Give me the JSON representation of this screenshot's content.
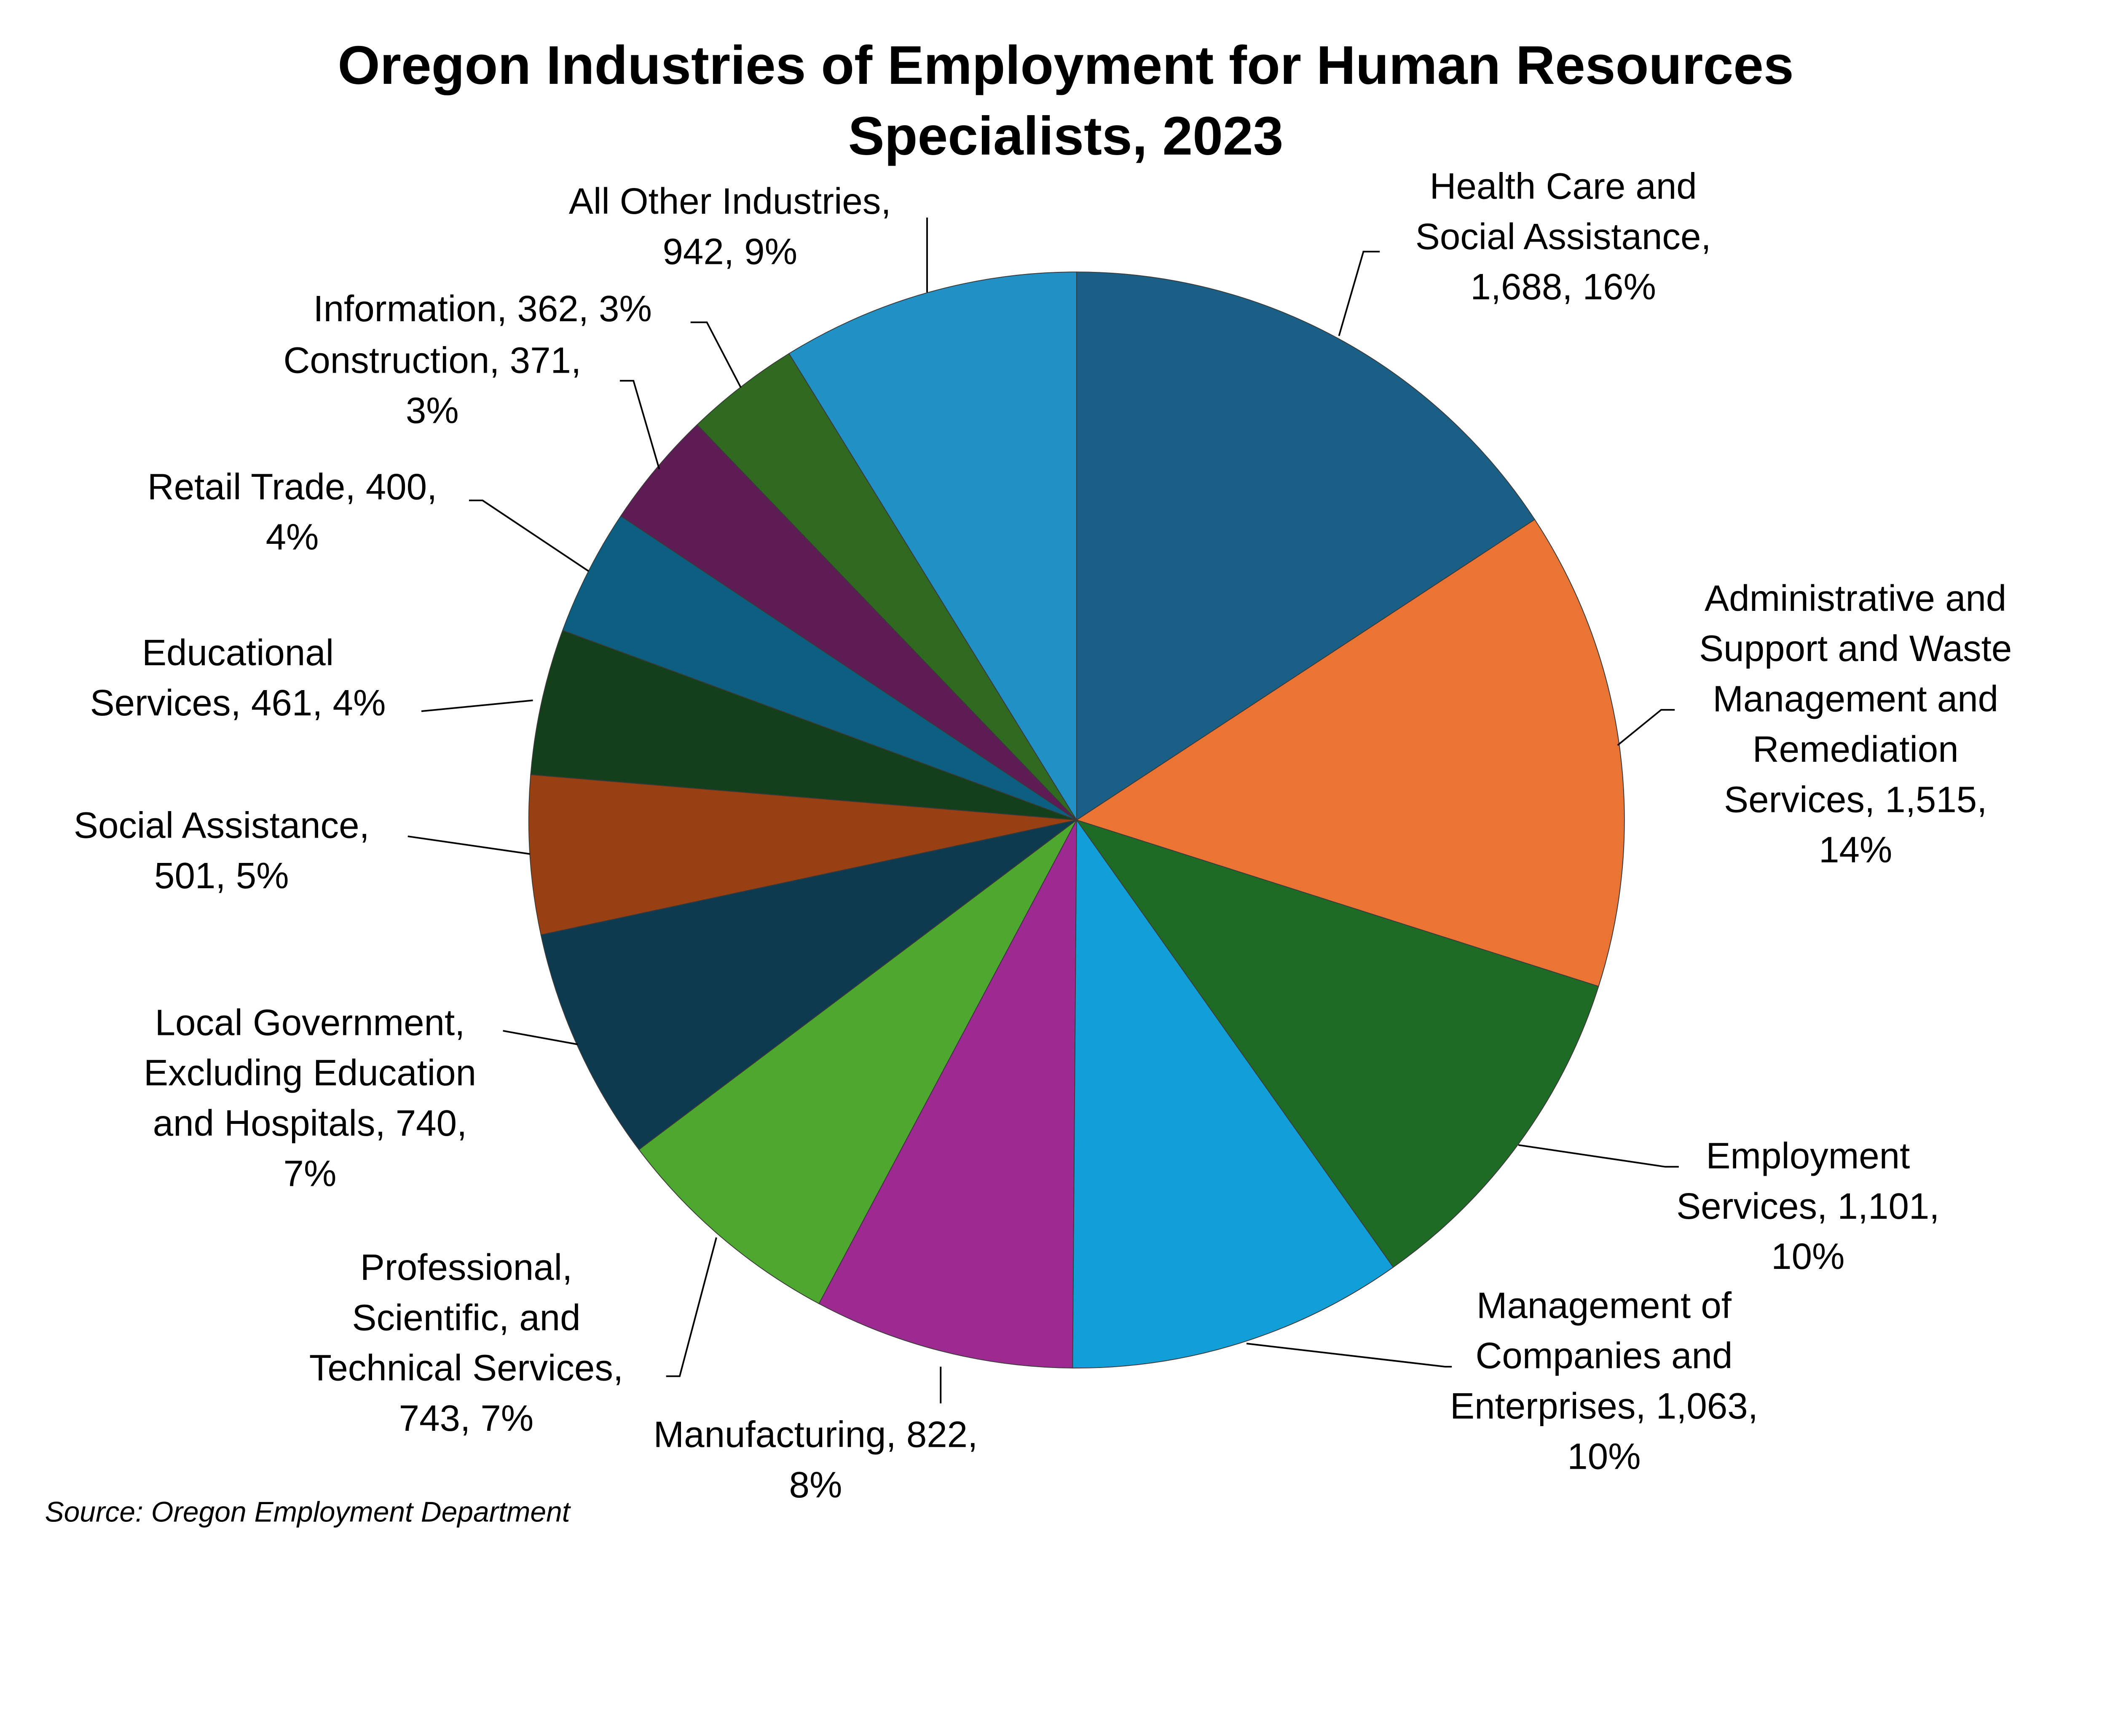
{
  "chart_data": {
    "type": "pie",
    "title": "Oregon Industries of Employment for Human Resources Specialists, 2023",
    "title_lines": [
      "Oregon Industries of Employment for Human Resources",
      "Specialists, 2023"
    ],
    "source": "Source: Oregon Employment Department",
    "start_angle": "12 o'clock",
    "direction": "clockwise",
    "slices": [
      {
        "name": "Health Care and Social Assistance",
        "value": 1688,
        "percent": 16,
        "color": "#1a5f85",
        "label_lines": [
          "Health Care and",
          "Social Assistance,",
          "1,688, 16%"
        ]
      },
      {
        "name": "Administrative and Support and Waste Management and Remediation Services",
        "value": 1515,
        "percent": 14,
        "color": "#e97434",
        "label_lines": [
          "Administrative and",
          "Support and Waste",
          "Management and",
          "Remediation",
          "Services, 1,515,",
          "14%"
        ]
      },
      {
        "name": "Employment Services",
        "value": 1101,
        "percent": 10,
        "color": "#1d6b24",
        "label_lines": [
          "Employment",
          "Services, 1,101,",
          "10%"
        ]
      },
      {
        "name": "Management of Companies and Enterprises",
        "value": 1063,
        "percent": 10,
        "color": "#129fd8",
        "label_lines": [
          "Management of",
          "Companies and",
          "Enterprises, 1,063,",
          "10%"
        ]
      },
      {
        "name": "Manufacturing",
        "value": 822,
        "percent": 8,
        "color": "#9c2a91",
        "label_lines": [
          "Manufacturing, 822,",
          "8%"
        ]
      },
      {
        "name": "Professional, Scientific, and Technical Services",
        "value": 743,
        "percent": 7,
        "color": "#4ea72e",
        "label_lines": [
          "Professional,",
          "Scientific, and",
          "Technical Services,",
          "743, 7%"
        ]
      },
      {
        "name": "Local Government, Excluding Education and Hospitals",
        "value": 740,
        "percent": 7,
        "color": "#0e3a50",
        "label_lines": [
          "Local Government,",
          "Excluding Education",
          "and Hospitals, 740,",
          "7%"
        ]
      },
      {
        "name": "Social Assistance",
        "value": 501,
        "percent": 5,
        "color": "#984011",
        "label_lines": [
          "Social Assistance,",
          "501, 5%"
        ]
      },
      {
        "name": "Educational Services",
        "value": 461,
        "percent": 4,
        "color": "#13401a",
        "label_lines": [
          "Educational",
          "Services, 461, 4%"
        ]
      },
      {
        "name": "Retail Trade",
        "value": 400,
        "percent": 4,
        "color": "#0d5f82",
        "label_lines": [
          "Retail Trade, 400,",
          "4%"
        ]
      },
      {
        "name": "Construction",
        "value": 371,
        "percent": 3,
        "color": "#5e1c55",
        "label_lines": [
          "Construction, 371,",
          "3%"
        ]
      },
      {
        "name": "Information",
        "value": 362,
        "percent": 3,
        "color": "#2f6a20",
        "label_lines": [
          "Information, 362, 3%"
        ]
      },
      {
        "name": "All Other Industries",
        "value": 942,
        "percent": 9,
        "color": "#2190c4",
        "label_lines": [
          "All Other Industries,",
          "942, 9%"
        ]
      }
    ]
  }
}
